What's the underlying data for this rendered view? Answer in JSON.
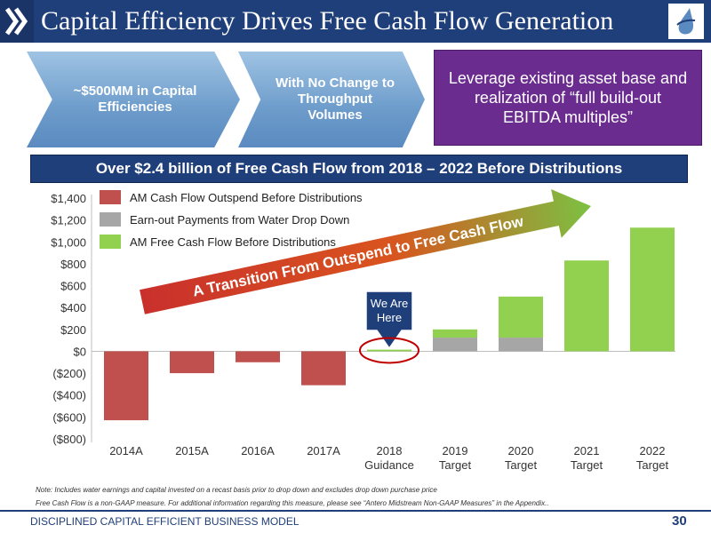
{
  "header": {
    "title": "Capital Efficiency Drives Free Cash Flow Generation"
  },
  "boxes": {
    "arrow1": "~$500MM in Capital Efficiencies",
    "arrow2": "With No Change to Throughput Volumes",
    "purple": "Leverage existing asset base and realization of “full build-out EBITDA multiples”"
  },
  "banner": "Over $2.4 billion of Free Cash Flow from 2018 – 2022 Before Distributions",
  "chart_data": {
    "type": "bar",
    "stacked": true,
    "categories": [
      {
        "line1": "2014A",
        "line2": ""
      },
      {
        "line1": "2015A",
        "line2": ""
      },
      {
        "line1": "2016A",
        "line2": ""
      },
      {
        "line1": "2017A",
        "line2": ""
      },
      {
        "line1": "2018",
        "line2": "Guidance"
      },
      {
        "line1": "2019",
        "line2": "Target"
      },
      {
        "line1": "2020",
        "line2": "Target"
      },
      {
        "line1": "2021",
        "line2": "Target"
      },
      {
        "line1": "2022",
        "line2": "Target"
      }
    ],
    "series": [
      {
        "name": "AM Cash Flow Outspend Before Distributions",
        "color": "#c0504d",
        "values": [
          -630,
          -200,
          -100,
          -310,
          0,
          0,
          0,
          0,
          0
        ]
      },
      {
        "name": "Earn-out Payments from Water Drop Down",
        "color": "#a6a6a6",
        "values": [
          0,
          0,
          0,
          0,
          0,
          125,
          125,
          0,
          0
        ]
      },
      {
        "name": "AM Free Cash Flow Before Distributions",
        "color": "#92d050",
        "values": [
          0,
          0,
          0,
          0,
          15,
          75,
          375,
          830,
          1130
        ]
      }
    ],
    "y_ticks": [
      1400,
      1200,
      1000,
      800,
      600,
      400,
      200,
      0,
      -200,
      -400,
      -600,
      -800
    ],
    "y_tick_labels": [
      "$1,400",
      "$1,200",
      "$1,000",
      "$800",
      "$600",
      "$400",
      "$200",
      "$0",
      "($200)",
      "($400)",
      "($600)",
      "($800)"
    ],
    "ylim": [
      -800,
      1400
    ],
    "legend_position": "top-left",
    "annotations": {
      "arrow_text": "A Transition From Outspend to Free Cash Flow",
      "callout_line1": "We Are",
      "callout_line2": "Here"
    }
  },
  "notes": {
    "note1": "Note: Includes water earnings and capital invested on a recast basis prior to drop down and excludes drop down purchase price",
    "note2": "Free Cash Flow is a non-GAAP measure.  For additional information regarding this measure, please see “Antero Midstream Non-GAAP Measures” in the Appendix.."
  },
  "footer": {
    "text": "DISCIPLINED CAPITAL EFFICIENT BUSINESS MODEL",
    "page": "30"
  }
}
